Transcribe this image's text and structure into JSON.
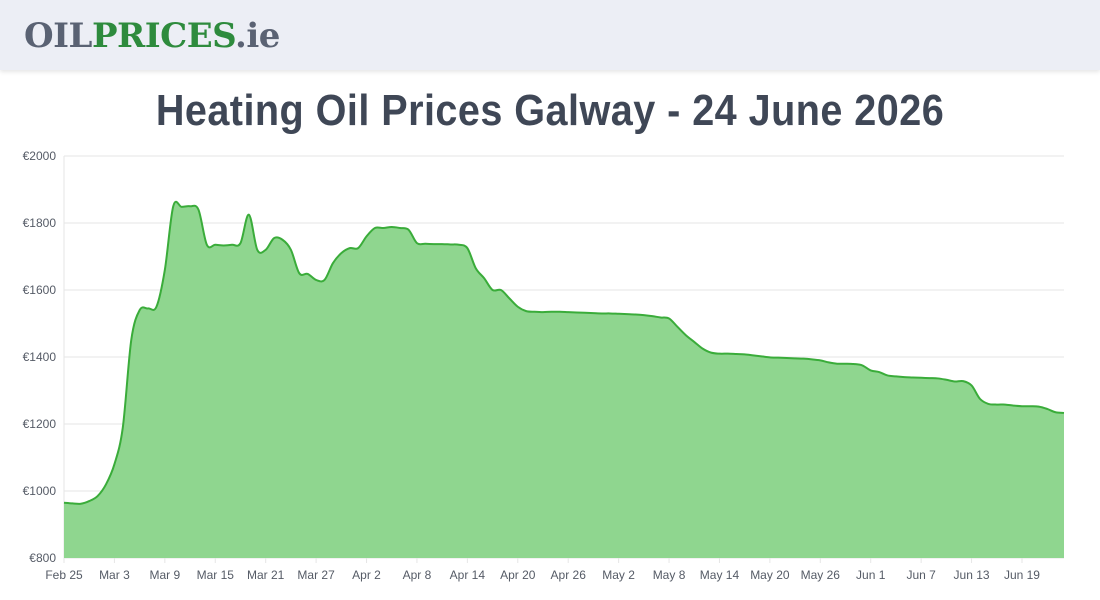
{
  "header": {
    "logo_oil": "OIL",
    "logo_prices": "PRICES",
    "logo_ie": ".ie"
  },
  "page_title": "Heating Oil Prices Galway - 24 June 2026",
  "colors": {
    "line": "#3aac3a",
    "fill": "#8fd68f",
    "grid": "#e6e6e6",
    "logo_gray": "#5a6273",
    "logo_green": "#2e8b3d",
    "title": "#3f4756"
  },
  "chart_data": {
    "type": "area",
    "title": "Heating Oil Prices Galway - 24 June 2026",
    "xlabel": "",
    "ylabel": "",
    "ylim": [
      800,
      2000
    ],
    "grid": true,
    "yticks": [
      800,
      1000,
      1200,
      1400,
      1600,
      1800,
      2000
    ],
    "ytick_labels": [
      "€800",
      "€1000",
      "€1200",
      "€1400",
      "€1600",
      "€1800",
      "€2000"
    ],
    "xtick_labels": [
      "Feb 25",
      "Mar 3",
      "Mar 9",
      "Mar 15",
      "Mar 21",
      "Mar 27",
      "Apr 2",
      "Apr 8",
      "Apr 14",
      "Apr 20",
      "Apr 26",
      "May 2",
      "May 8",
      "May 14",
      "May 20",
      "May 26",
      "Jun 1",
      "Jun 7",
      "Jun 13",
      "Jun 19"
    ],
    "x_start": "Feb 25",
    "x_end": "Jun 24",
    "series": [
      {
        "points": [
          [
            "Feb 25",
            965
          ],
          [
            "Feb 26",
            963
          ],
          [
            "Feb 27",
            962
          ],
          [
            "Feb 28",
            970
          ],
          [
            "Mar 1",
            985
          ],
          [
            "Mar 2",
            1020
          ],
          [
            "Mar 3",
            1080
          ],
          [
            "Mar 4",
            1190
          ],
          [
            "Mar 5",
            1450
          ],
          [
            "Mar 6",
            1540
          ],
          [
            "Mar 7",
            1545
          ],
          [
            "Mar 8",
            1550
          ],
          [
            "Mar 9",
            1660
          ],
          [
            "Mar 10",
            1850
          ],
          [
            "Mar 11",
            1848
          ],
          [
            "Mar 12",
            1850
          ],
          [
            "Mar 13",
            1840
          ],
          [
            "Mar 14",
            1735
          ],
          [
            "Mar 15",
            1735
          ],
          [
            "Mar 16",
            1733
          ],
          [
            "Mar 17",
            1735
          ],
          [
            "Mar 18",
            1740
          ],
          [
            "Mar 19",
            1825
          ],
          [
            "Mar 20",
            1720
          ],
          [
            "Mar 21",
            1720
          ],
          [
            "Mar 22",
            1755
          ],
          [
            "Mar 23",
            1750
          ],
          [
            "Mar 24",
            1720
          ],
          [
            "Mar 25",
            1650
          ],
          [
            "Mar 26",
            1648
          ],
          [
            "Mar 27",
            1630
          ],
          [
            "Mar 28",
            1630
          ],
          [
            "Mar 29",
            1680
          ],
          [
            "Mar 30",
            1710
          ],
          [
            "Mar 31",
            1725
          ],
          [
            "Apr 1",
            1725
          ],
          [
            "Apr 2",
            1760
          ],
          [
            "Apr 3",
            1785
          ],
          [
            "Apr 4",
            1785
          ],
          [
            "Apr 5",
            1788
          ],
          [
            "Apr 6",
            1785
          ],
          [
            "Apr 7",
            1780
          ],
          [
            "Apr 8",
            1740
          ],
          [
            "Apr 9",
            1738
          ],
          [
            "Apr 10",
            1737
          ],
          [
            "Apr 11",
            1737
          ],
          [
            "Apr 12",
            1736
          ],
          [
            "Apr 13",
            1735
          ],
          [
            "Apr 14",
            1725
          ],
          [
            "Apr 15",
            1665
          ],
          [
            "Apr 16",
            1635
          ],
          [
            "Apr 17",
            1600
          ],
          [
            "Apr 18",
            1600
          ],
          [
            "Apr 19",
            1575
          ],
          [
            "Apr 20",
            1550
          ],
          [
            "Apr 21",
            1537
          ],
          [
            "Apr 22",
            1535
          ],
          [
            "Apr 23",
            1534
          ],
          [
            "Apr 24",
            1535
          ],
          [
            "Apr 25",
            1535
          ],
          [
            "Apr 26",
            1534
          ],
          [
            "Apr 27",
            1533
          ],
          [
            "Apr 28",
            1532
          ],
          [
            "Apr 29",
            1531
          ],
          [
            "Apr 30",
            1530
          ],
          [
            "May 1",
            1530
          ],
          [
            "May 2",
            1529
          ],
          [
            "May 3",
            1528
          ],
          [
            "May 4",
            1527
          ],
          [
            "May 5",
            1525
          ],
          [
            "May 6",
            1522
          ],
          [
            "May 7",
            1518
          ],
          [
            "May 8",
            1515
          ],
          [
            "May 9",
            1490
          ],
          [
            "May 10",
            1465
          ],
          [
            "May 11",
            1445
          ],
          [
            "May 12",
            1425
          ],
          [
            "May 13",
            1413
          ],
          [
            "May 14",
            1410
          ],
          [
            "May 15",
            1410
          ],
          [
            "May 16",
            1409
          ],
          [
            "May 17",
            1408
          ],
          [
            "May 18",
            1405
          ],
          [
            "May 19",
            1402
          ],
          [
            "May 20",
            1399
          ],
          [
            "May 21",
            1398
          ],
          [
            "May 22",
            1397
          ],
          [
            "May 23",
            1396
          ],
          [
            "May 24",
            1395
          ],
          [
            "May 25",
            1393
          ],
          [
            "May 26",
            1390
          ],
          [
            "May 27",
            1384
          ],
          [
            "May 28",
            1380
          ],
          [
            "May 29",
            1380
          ],
          [
            "May 30",
            1379
          ],
          [
            "May 31",
            1375
          ],
          [
            "Jun 1",
            1360
          ],
          [
            "Jun 2",
            1355
          ],
          [
            "Jun 3",
            1345
          ],
          [
            "Jun 4",
            1342
          ],
          [
            "Jun 5",
            1340
          ],
          [
            "Jun 6",
            1339
          ],
          [
            "Jun 7",
            1338
          ],
          [
            "Jun 8",
            1337
          ],
          [
            "Jun 9",
            1336
          ],
          [
            "Jun 10",
            1332
          ],
          [
            "Jun 11",
            1327
          ],
          [
            "Jun 12",
            1328
          ],
          [
            "Jun 13",
            1315
          ],
          [
            "Jun 14",
            1275
          ],
          [
            "Jun 15",
            1260
          ],
          [
            "Jun 16",
            1258
          ],
          [
            "Jun 17",
            1258
          ],
          [
            "Jun 18",
            1255
          ],
          [
            "Jun 19",
            1253
          ],
          [
            "Jun 20",
            1253
          ],
          [
            "Jun 21",
            1252
          ],
          [
            "Jun 22",
            1245
          ],
          [
            "Jun 23",
            1235
          ],
          [
            "Jun 24",
            1233
          ]
        ]
      }
    ]
  }
}
